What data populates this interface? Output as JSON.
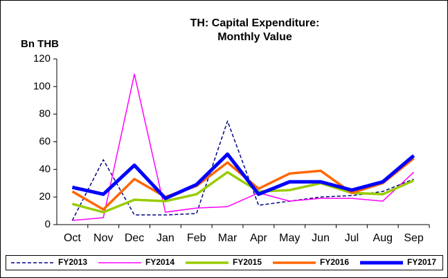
{
  "chart_data": {
    "type": "line",
    "title": [
      "TH: Capital Expenditure:",
      "Monthly Value"
    ],
    "y_label": "Bn THB",
    "categories": [
      "Oct",
      "Nov",
      "Dec",
      "Jan",
      "Feb",
      "Mar",
      "Apr",
      "May",
      "Jun",
      "Jul",
      "Aug",
      "Sep"
    ],
    "series": [
      {
        "name": "FY2013",
        "color": "#000080",
        "width": 1.5,
        "dash": true,
        "values": [
          3,
          47,
          7,
          7,
          8,
          75,
          14,
          17,
          20,
          21,
          24,
          33
        ]
      },
      {
        "name": "FY2014",
        "color": "#ff00ff",
        "width": 1.5,
        "dash": false,
        "values": [
          3,
          5,
          109,
          9,
          12,
          13,
          23,
          17,
          19,
          19,
          17,
          38
        ]
      },
      {
        "name": "FY2015",
        "color": "#99cc00",
        "width": 3.5,
        "dash": false,
        "values": [
          15,
          9,
          18,
          17,
          22,
          38,
          24,
          25,
          30,
          23,
          22,
          32
        ]
      },
      {
        "name": "FY2016",
        "color": "#ff6600",
        "width": 3.5,
        "dash": false,
        "values": [
          24,
          11,
          33,
          20,
          28,
          45,
          26,
          37,
          39,
          23,
          30,
          48
        ]
      },
      {
        "name": "FY2017",
        "color": "#0000ff",
        "width": 5,
        "dash": false,
        "values": [
          27,
          22,
          43,
          19,
          29,
          51,
          22,
          31,
          31,
          25,
          31,
          50
        ]
      }
    ],
    "ylim": [
      0,
      120
    ],
    "yticks": [
      0,
      20,
      40,
      60,
      80,
      100,
      120
    ],
    "legend": "bottom"
  }
}
